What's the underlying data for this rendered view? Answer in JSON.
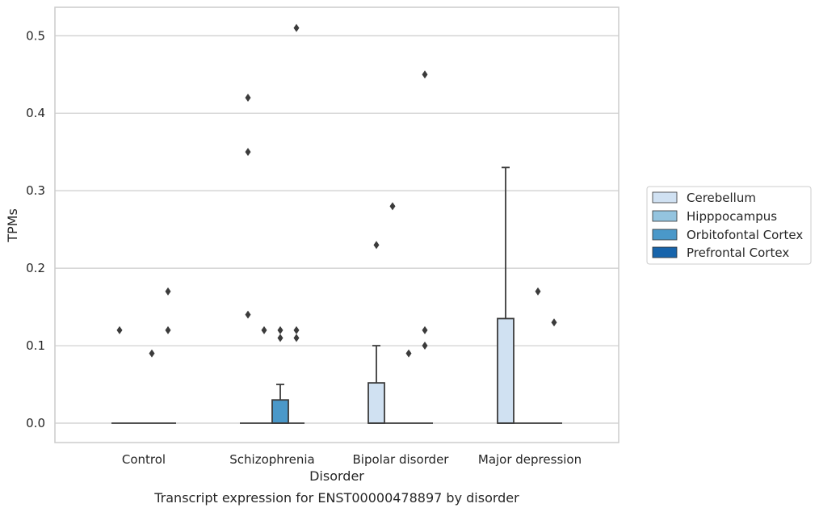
{
  "caption": "Transcript expression for ENST00000478897 by disorder",
  "chart_data": {
    "type": "box",
    "title": "",
    "xlabel": "Disorder",
    "ylabel": "TPMs",
    "categories": [
      "Control",
      "Schizophrenia",
      "Bipolar disorder",
      "Major depression"
    ],
    "ylim": [
      -0.025,
      0.537
    ],
    "yticks": [
      0.0,
      0.1,
      0.2,
      0.3,
      0.4,
      0.5
    ],
    "ytick_labels": [
      "0.0",
      "0.1",
      "0.2",
      "0.3",
      "0.4",
      "0.5"
    ],
    "grid": "horizontal",
    "legend_position": "right",
    "series": [
      {
        "name": "Cerebellum",
        "color": "#d0e1f2",
        "boxes": [
          {
            "min": 0,
            "q1": 0,
            "median": 0,
            "q3": 0,
            "max": 0,
            "outliers": [
              0.12
            ]
          },
          {
            "min": 0,
            "q1": 0,
            "median": 0,
            "q3": 0,
            "max": 0,
            "outliers": [
              0.42,
              0.35,
              0.14
            ]
          },
          {
            "min": 0,
            "q1": 0,
            "median": 0,
            "q3": 0.052,
            "max": 0.1,
            "outliers": [
              0.23
            ]
          },
          {
            "min": 0,
            "q1": 0,
            "median": 0,
            "q3": 0.135,
            "max": 0.33,
            "outliers": []
          }
        ]
      },
      {
        "name": "Hipppocampus",
        "color": "#94c4df",
        "boxes": [
          {
            "min": 0,
            "q1": 0,
            "median": 0,
            "q3": 0,
            "max": 0,
            "outliers": []
          },
          {
            "min": 0,
            "q1": 0,
            "median": 0,
            "q3": 0,
            "max": 0,
            "outliers": [
              0.12
            ]
          },
          {
            "min": 0,
            "q1": 0,
            "median": 0,
            "q3": 0,
            "max": 0,
            "outliers": [
              0.28
            ]
          },
          {
            "min": 0,
            "q1": 0,
            "median": 0,
            "q3": 0,
            "max": 0,
            "outliers": []
          }
        ]
      },
      {
        "name": "Orbitofontal Cortex",
        "color": "#4a98c9",
        "boxes": [
          {
            "min": 0,
            "q1": 0,
            "median": 0,
            "q3": 0,
            "max": 0,
            "outliers": [
              0.09
            ]
          },
          {
            "min": 0,
            "q1": 0,
            "median": 0,
            "q3": 0.03,
            "max": 0.05,
            "outliers": [
              0.12,
              0.11
            ]
          },
          {
            "min": 0,
            "q1": 0,
            "median": 0,
            "q3": 0,
            "max": 0,
            "outliers": [
              0.09
            ]
          },
          {
            "min": 0,
            "q1": 0,
            "median": 0,
            "q3": 0,
            "max": 0,
            "outliers": [
              0.17
            ]
          }
        ]
      },
      {
        "name": "Prefrontal Cortex",
        "color": "#1764ab",
        "boxes": [
          {
            "min": 0,
            "q1": 0,
            "median": 0,
            "q3": 0,
            "max": 0,
            "outliers": [
              0.17,
              0.12
            ]
          },
          {
            "min": 0,
            "q1": 0,
            "median": 0,
            "q3": 0,
            "max": 0,
            "outliers": [
              0.51,
              0.12,
              0.11
            ]
          },
          {
            "min": 0,
            "q1": 0,
            "median": 0,
            "q3": 0,
            "max": 0,
            "outliers": [
              0.45,
              0.12,
              0.1
            ]
          },
          {
            "min": 0,
            "q1": 0,
            "median": 0,
            "q3": 0,
            "max": 0,
            "outliers": [
              0.13
            ]
          }
        ]
      }
    ]
  }
}
